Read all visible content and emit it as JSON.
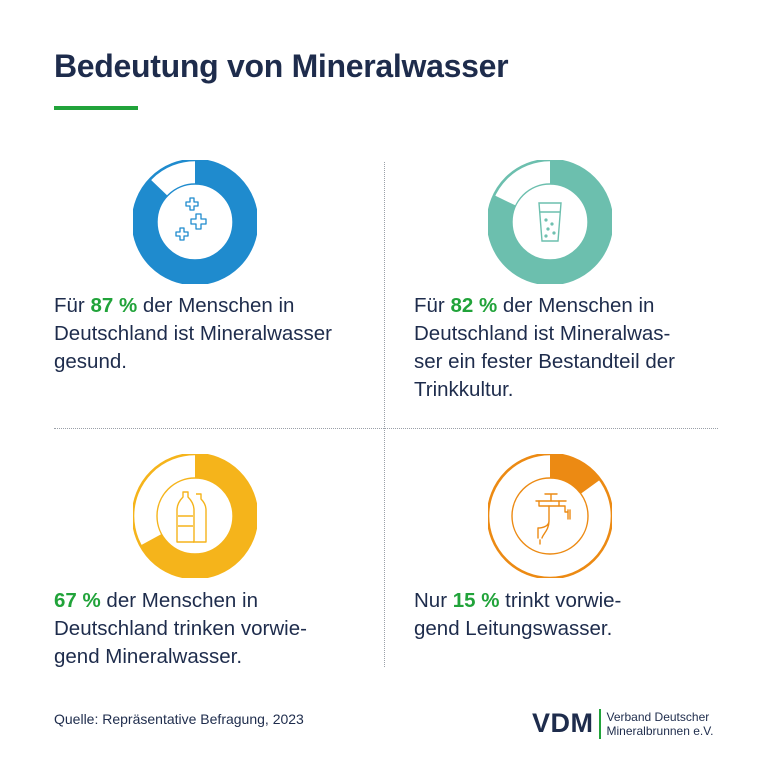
{
  "title": "Bedeutung von Mineralwasser",
  "source": "Quelle: Repräsentative Befragung, 2023",
  "logo": {
    "mark": "VDM",
    "line1": "Verband Deutscher",
    "line2": "Mineralbrunnen e.V."
  },
  "colors": {
    "navy": "#1e2c4c",
    "green": "#21a33a",
    "blue": "#1f8bce",
    "teal": "#6cbfae",
    "yellow": "#f5b41b",
    "orange": "#ec8a13"
  },
  "chart_data": [
    {
      "type": "pie",
      "title": "Mineralwasser gesund",
      "value": 87,
      "unit": "%",
      "color": "#1f8bce",
      "icon": "medical-crosses-icon"
    },
    {
      "type": "pie",
      "title": "Fester Bestandteil der Trinkkultur",
      "value": 82,
      "unit": "%",
      "color": "#6cbfae",
      "icon": "water-glass-icon"
    },
    {
      "type": "pie",
      "title": "Trinken vorwiegend Mineralwasser",
      "value": 67,
      "unit": "%",
      "color": "#f5b41b",
      "icon": "bottles-icon"
    },
    {
      "type": "pie",
      "title": "Trinkt vorwiegend Leitungswasser",
      "value": 15,
      "unit": "%",
      "color": "#ec8a13",
      "icon": "faucet-icon"
    }
  ],
  "panels": [
    {
      "pre": "Für ",
      "pct": "87 %",
      "post": " der Menschen in",
      "l2": "Deutschland ist Mineralwasser",
      "l3": "gesund.",
      "l4": ""
    },
    {
      "pre": "Für ",
      "pct": "82 %",
      "post": " der Menschen in",
      "l2": "Deutschland ist Mineralwas-",
      "l3": "ser ein fester Bestandteil der",
      "l4": "Trinkkultur."
    },
    {
      "pre": "",
      "pct": "67 %",
      "post": " der Menschen in",
      "l2": "Deutschland trinken vorwie-",
      "l3": "gend Mineralwasser.",
      "l4": ""
    },
    {
      "pre": "Nur ",
      "pct": "15 %",
      "post": " trinkt vorwie-",
      "l2": "gend Leitungswasser.",
      "l3": "",
      "l4": ""
    }
  ]
}
